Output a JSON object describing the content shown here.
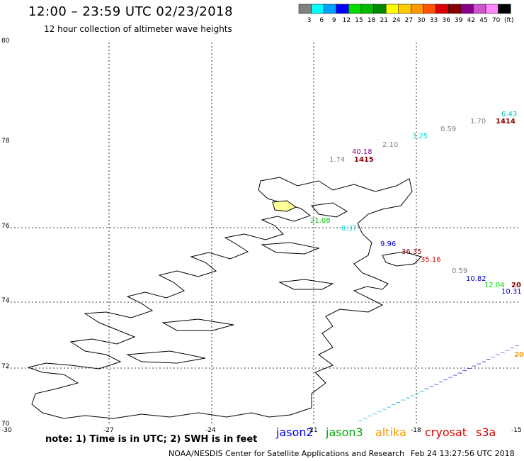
{
  "title": "12:00 – 23:59 UTC 02/23/2018",
  "subtitle": "12 hour collection of altimeter wave heights",
  "legend": {
    "unit": "(ft)",
    "bins": [
      {
        "label": "3",
        "color": "#808080"
      },
      {
        "label": "6",
        "color": "#00ffff"
      },
      {
        "label": "9",
        "color": "#00a0ff"
      },
      {
        "label": "12",
        "color": "#0000ff"
      },
      {
        "label": "15",
        "color": "#00dd00"
      },
      {
        "label": "18",
        "color": "#00bb00"
      },
      {
        "label": "21",
        "color": "#008800"
      },
      {
        "label": "24",
        "color": "#ffff00"
      },
      {
        "label": "27",
        "color": "#ffcc00"
      },
      {
        "label": "30",
        "color": "#ff9900"
      },
      {
        "label": "33",
        "color": "#ff5500"
      },
      {
        "label": "36",
        "color": "#dd0000"
      },
      {
        "label": "39",
        "color": "#880000"
      },
      {
        "label": "42",
        "color": "#880088"
      },
      {
        "label": "45",
        "color": "#cc55cc"
      },
      {
        "label": "70",
        "color": "#ff88ff"
      },
      {
        "label": "",
        "color": "#000000"
      }
    ]
  },
  "axes": {
    "lat_labels": [
      "80",
      "78",
      "76",
      "74",
      "72",
      "70"
    ],
    "lon_labels": [
      "-30",
      "-27",
      "-24",
      "-21",
      "-18",
      "-15"
    ]
  },
  "observations": [
    {
      "text": "6.43",
      "color": "#00bbbb"
    },
    {
      "text": "1.70",
      "color": "#808080"
    },
    {
      "text": "1414",
      "color": "#880000",
      "bold": true
    },
    {
      "text": "0.59",
      "color": "#808080"
    },
    {
      "text": "3.25",
      "color": "#00dddd"
    },
    {
      "text": "2.10",
      "color": "#808080"
    },
    {
      "text": "40.18",
      "color": "#880088"
    },
    {
      "text": "1.74",
      "color": "#808080"
    },
    {
      "text": "1415",
      "color": "#880000",
      "bold": true
    },
    {
      "text": "21.08",
      "color": "#00bb00"
    },
    {
      "text": "8.37",
      "color": "#00dddd"
    },
    {
      "text": "9.96",
      "color": "#0000cc"
    },
    {
      "text": "36.35",
      "color": "#880000"
    },
    {
      "text": "35.16",
      "color": "#dd0000"
    },
    {
      "text": "0.59",
      "color": "#808080"
    },
    {
      "text": "10.82",
      "color": "#0000cc"
    },
    {
      "text": "12.04",
      "color": "#00dd00"
    },
    {
      "text": "20",
      "color": "#880000",
      "bold": true
    },
    {
      "text": "10.31",
      "color": "#0000cc"
    },
    {
      "text": "20",
      "color": "#ff9900",
      "bold": true
    }
  ],
  "footer": {
    "note": "note: 1) Time is in UTC; 2) SWH is in feet",
    "satellites": [
      {
        "name": "jason2",
        "color": "#0000dd"
      },
      {
        "name": "jason3",
        "color": "#00aa00"
      },
      {
        "name": "altika",
        "color": "#ff9900"
      },
      {
        "name": "cryosat",
        "color": "#dd0000"
      },
      {
        "name": "s3a",
        "color": "#cc0000"
      }
    ],
    "credit": "NOAA/NESDIS Center for Satellite Applications and Research",
    "timestamp": "Feb 24 13:27:56 UTC 2018"
  }
}
